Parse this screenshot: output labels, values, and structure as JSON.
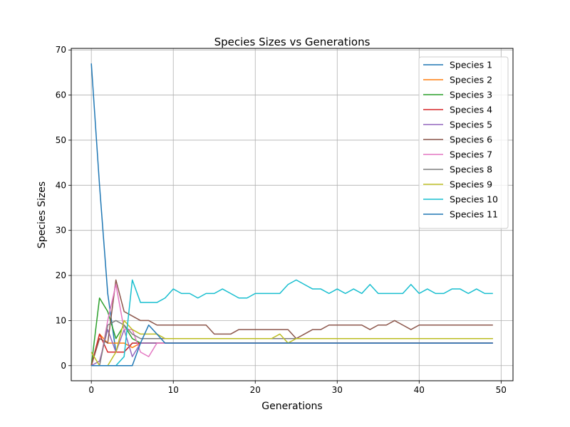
{
  "chart_data": {
    "type": "line",
    "title": "Species Sizes vs Generations",
    "xlabel": "Generations",
    "ylabel": "Species Sizes",
    "xlim": [
      -2.45,
      51.45
    ],
    "ylim": [
      -3.35,
      70.35
    ],
    "xticks": [
      0,
      10,
      20,
      30,
      40,
      50
    ],
    "yticks": [
      0,
      10,
      20,
      30,
      40,
      50,
      60,
      70
    ],
    "grid": true,
    "legend_position": "upper right",
    "series": [
      {
        "name": "Species 1",
        "color": "#1f77b4",
        "x": [
          0,
          1,
          2,
          3,
          4,
          5,
          6,
          7,
          8,
          9,
          10,
          11,
          12,
          13,
          14,
          15,
          16,
          17,
          18,
          19,
          20,
          21,
          22,
          23,
          24,
          25,
          26,
          27,
          28,
          29,
          30,
          31,
          32,
          33,
          34,
          35,
          36,
          37,
          38,
          39,
          40,
          41,
          42,
          43,
          44,
          45,
          46,
          47,
          48,
          49
        ],
        "y": [
          67,
          40,
          16,
          3,
          3,
          5,
          5,
          5,
          5,
          5,
          5,
          5,
          5,
          5,
          5,
          5,
          5,
          5,
          5,
          5,
          5,
          5,
          5,
          5,
          5,
          5,
          5,
          5,
          5,
          5,
          5,
          5,
          5,
          5,
          5,
          5,
          5,
          5,
          5,
          5,
          5,
          5,
          5,
          5,
          5,
          5,
          5,
          5,
          5,
          5
        ]
      },
      {
        "name": "Species 2",
        "color": "#ff7f0e",
        "x": [
          0,
          1,
          2,
          3,
          4,
          5,
          6,
          7,
          8,
          9,
          10,
          11,
          12,
          13,
          14,
          15,
          16,
          17,
          18,
          19,
          20,
          21,
          22,
          23,
          24,
          25,
          26,
          27,
          28,
          29,
          30,
          31,
          32,
          33,
          34,
          35,
          36,
          37,
          38,
          39,
          40,
          41,
          42,
          43,
          44,
          45,
          46,
          47,
          48,
          49
        ],
        "y": [
          0,
          7,
          5,
          5,
          5,
          4,
          5,
          5,
          5,
          5,
          5,
          5,
          5,
          5,
          5,
          5,
          5,
          5,
          5,
          5,
          5,
          5,
          5,
          5,
          5,
          5,
          5,
          5,
          5,
          5,
          5,
          5,
          5,
          5,
          5,
          5,
          5,
          5,
          5,
          5,
          5,
          5,
          5,
          5,
          5,
          5,
          5,
          5,
          5,
          5
        ]
      },
      {
        "name": "Species 3",
        "color": "#2ca02c",
        "x": [
          0,
          1,
          2,
          3,
          4,
          5,
          6,
          7,
          8,
          9,
          10,
          11,
          12,
          13,
          14,
          15,
          16,
          17,
          18,
          19,
          20,
          21,
          22,
          23,
          24,
          25,
          26,
          27,
          28,
          29,
          30,
          31,
          32,
          33,
          34,
          35,
          36,
          37,
          38,
          39,
          40,
          41,
          42,
          43,
          44,
          45,
          46,
          47,
          48,
          49
        ],
        "y": [
          0,
          15,
          12,
          6,
          9,
          6,
          5,
          5,
          5,
          5,
          5,
          5,
          5,
          5,
          5,
          5,
          5,
          5,
          5,
          5,
          5,
          5,
          5,
          5,
          5,
          5,
          5,
          5,
          5,
          5,
          5,
          5,
          5,
          5,
          5,
          5,
          5,
          5,
          5,
          5,
          5,
          5,
          5,
          5,
          5,
          5,
          5,
          5,
          5,
          5
        ]
      },
      {
        "name": "Species 4",
        "color": "#d62728",
        "x": [
          0,
          1,
          2,
          3,
          4,
          5,
          6,
          7,
          8,
          9,
          10,
          11,
          12,
          13,
          14,
          15,
          16,
          17,
          18,
          19,
          20,
          21,
          22,
          23,
          24,
          25,
          26,
          27,
          28,
          29,
          30,
          31,
          32,
          33,
          34,
          35,
          36,
          37,
          38,
          39,
          40,
          41,
          42,
          43,
          44,
          45,
          46,
          47,
          48,
          49
        ],
        "y": [
          0,
          7,
          3,
          3,
          3,
          5,
          5,
          5,
          5,
          5,
          5,
          5,
          5,
          5,
          5,
          5,
          5,
          5,
          5,
          5,
          5,
          5,
          5,
          5,
          5,
          5,
          5,
          5,
          5,
          5,
          5,
          5,
          5,
          5,
          5,
          5,
          5,
          5,
          5,
          5,
          5,
          5,
          5,
          5,
          5,
          5,
          5,
          5,
          5,
          5
        ]
      },
      {
        "name": "Species 5",
        "color": "#9467bd",
        "x": [
          0,
          1,
          2,
          3,
          4,
          5,
          6,
          7,
          8,
          9,
          10,
          11,
          12,
          13,
          14,
          15,
          16,
          17,
          18,
          19,
          20,
          21,
          22,
          23,
          24,
          25,
          26,
          27,
          28,
          29,
          30,
          31,
          32,
          33,
          34,
          35,
          36,
          37,
          38,
          39,
          40,
          41,
          42,
          43,
          44,
          45,
          46,
          47,
          48,
          49
        ],
        "y": [
          0,
          1,
          8,
          3,
          8,
          2,
          5,
          5,
          5,
          5,
          5,
          5,
          5,
          5,
          5,
          5,
          5,
          5,
          5,
          5,
          5,
          5,
          5,
          5,
          5,
          5,
          5,
          5,
          5,
          5,
          5,
          5,
          5,
          5,
          5,
          5,
          5,
          5,
          5,
          5,
          5,
          5,
          5,
          5,
          5,
          5,
          5,
          5,
          5,
          5
        ]
      },
      {
        "name": "Species 6",
        "color": "#8c564b",
        "x": [
          0,
          1,
          2,
          3,
          4,
          5,
          6,
          7,
          8,
          9,
          10,
          11,
          12,
          13,
          14,
          15,
          16,
          17,
          18,
          19,
          20,
          21,
          22,
          23,
          24,
          25,
          26,
          27,
          28,
          29,
          30,
          31,
          32,
          33,
          34,
          35,
          36,
          37,
          38,
          39,
          40,
          41,
          42,
          43,
          44,
          45,
          46,
          47,
          48,
          49
        ],
        "y": [
          0,
          6,
          5,
          19,
          12,
          11,
          10,
          10,
          9,
          9,
          9,
          9,
          9,
          9,
          9,
          7,
          7,
          7,
          8,
          8,
          8,
          8,
          8,
          8,
          8,
          6,
          7,
          8,
          8,
          9,
          9,
          9,
          9,
          9,
          8,
          9,
          9,
          10,
          9,
          8,
          9,
          9,
          9,
          9,
          9,
          9,
          9,
          9,
          9,
          9
        ]
      },
      {
        "name": "Species 7",
        "color": "#e377c2",
        "x": [
          0,
          1,
          2,
          3,
          4,
          5,
          6,
          7,
          8,
          9,
          10,
          11,
          12,
          13,
          14,
          15,
          16,
          17,
          18,
          19,
          20,
          21,
          22,
          23,
          24,
          25,
          26,
          27,
          28,
          29,
          30,
          31,
          32,
          33,
          34,
          35,
          36,
          37,
          38,
          39,
          40,
          41,
          42,
          43,
          44,
          45,
          46,
          47,
          48,
          49
        ],
        "y": [
          0,
          0,
          10,
          18,
          8,
          8,
          3,
          2,
          5,
          5,
          5,
          5,
          5,
          5,
          5,
          5,
          5,
          5,
          5,
          5,
          5,
          5,
          5,
          5,
          5,
          5,
          5,
          5,
          5,
          5,
          5,
          5,
          5,
          5,
          5,
          5,
          5,
          5,
          5,
          5,
          5,
          5,
          5,
          5,
          5,
          5,
          5,
          5,
          5,
          5
        ]
      },
      {
        "name": "Species 8",
        "color": "#7f7f7f",
        "x": [
          0,
          1,
          2,
          3,
          4,
          5,
          6,
          7,
          8,
          9,
          10,
          11,
          12,
          13,
          14,
          15,
          16,
          17,
          18,
          19,
          20,
          21,
          22,
          23,
          24,
          25,
          26,
          27,
          28,
          29,
          30,
          31,
          32,
          33,
          34,
          35,
          36,
          37,
          38,
          39,
          40,
          41,
          42,
          43,
          44,
          45,
          46,
          47,
          48,
          49
        ],
        "y": [
          0,
          0,
          9,
          10,
          9,
          7,
          6,
          6,
          6,
          6,
          6,
          6,
          6,
          6,
          6,
          6,
          6,
          6,
          6,
          6,
          6,
          6,
          6,
          6,
          6,
          6,
          6,
          6,
          6,
          6,
          6,
          6,
          6,
          6,
          6,
          6,
          6,
          6,
          6,
          6,
          6,
          6,
          6,
          6,
          6,
          6,
          6,
          6,
          6,
          6
        ]
      },
      {
        "name": "Species 9",
        "color": "#bcbd22",
        "x": [
          0,
          1,
          2,
          3,
          4,
          5,
          6,
          7,
          8,
          9,
          10,
          11,
          12,
          13,
          14,
          15,
          16,
          17,
          18,
          19,
          20,
          21,
          22,
          23,
          24,
          25,
          26,
          27,
          28,
          29,
          30,
          31,
          32,
          33,
          34,
          35,
          36,
          37,
          38,
          39,
          40,
          41,
          42,
          43,
          44,
          45,
          46,
          47,
          48,
          49
        ],
        "y": [
          3,
          0,
          0,
          3,
          10,
          8,
          7,
          7,
          7,
          6,
          6,
          6,
          6,
          6,
          6,
          6,
          6,
          6,
          6,
          6,
          6,
          6,
          6,
          7,
          5,
          6,
          6,
          6,
          6,
          6,
          6,
          6,
          6,
          6,
          6,
          6,
          6,
          6,
          6,
          6,
          6,
          6,
          6,
          6,
          6,
          6,
          6,
          6,
          6,
          6
        ]
      },
      {
        "name": "Species 10",
        "color": "#17becf",
        "x": [
          0,
          1,
          2,
          3,
          4,
          5,
          6,
          7,
          8,
          9,
          10,
          11,
          12,
          13,
          14,
          15,
          16,
          17,
          18,
          19,
          20,
          21,
          22,
          23,
          24,
          25,
          26,
          27,
          28,
          29,
          30,
          31,
          32,
          33,
          34,
          35,
          36,
          37,
          38,
          39,
          40,
          41,
          42,
          43,
          44,
          45,
          46,
          47,
          48,
          49
        ],
        "y": [
          0,
          0,
          0,
          0,
          2,
          19,
          14,
          14,
          14,
          15,
          17,
          16,
          16,
          15,
          16,
          16,
          17,
          16,
          15,
          15,
          16,
          16,
          16,
          16,
          18,
          19,
          18,
          17,
          17,
          16,
          17,
          16,
          17,
          16,
          18,
          16,
          16,
          16,
          16,
          18,
          16,
          17,
          16,
          16,
          17,
          17,
          16,
          17,
          16,
          16
        ]
      },
      {
        "name": "Species 11",
        "color": "#1f77b4",
        "x": [
          0,
          1,
          2,
          3,
          4,
          5,
          6,
          7,
          8,
          9,
          10,
          11,
          12,
          13,
          14,
          15,
          16,
          17,
          18,
          19,
          20,
          21,
          22,
          23,
          24,
          25,
          26,
          27,
          28,
          29,
          30,
          31,
          32,
          33,
          34,
          35,
          36,
          37,
          38,
          39,
          40,
          41,
          42,
          43,
          44,
          45,
          46,
          47,
          48,
          49
        ],
        "y": [
          0,
          0,
          0,
          0,
          0,
          0,
          5,
          9,
          7,
          5,
          5,
          5,
          5,
          5,
          5,
          5,
          5,
          5,
          5,
          5,
          5,
          5,
          5,
          5,
          5,
          5,
          5,
          5,
          5,
          5,
          5,
          5,
          5,
          5,
          5,
          5,
          5,
          5,
          5,
          5,
          5,
          5,
          5,
          5,
          5,
          5,
          5,
          5,
          5,
          5
        ]
      }
    ]
  }
}
